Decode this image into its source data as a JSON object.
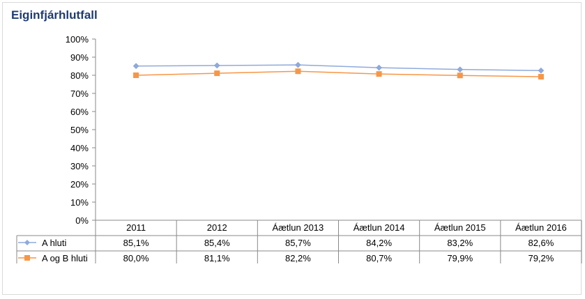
{
  "chart_data": {
    "type": "line",
    "title": "Eiginfjárhlutfall",
    "categories": [
      "2011",
      "2012",
      "Áætlun 2013",
      "Áætlun 2014",
      "Áætlun 2015",
      "Áætlun 2016"
    ],
    "ylim": [
      0,
      100
    ],
    "yticks": [
      "0%",
      "10%",
      "20%",
      "30%",
      "40%",
      "50%",
      "60%",
      "70%",
      "80%",
      "90%",
      "100%"
    ],
    "grid": false,
    "legend": "data-table",
    "series": [
      {
        "name": "A hluti",
        "values": [
          85.1,
          85.4,
          85.7,
          84.2,
          83.2,
          82.6
        ],
        "labels": [
          "85,1%",
          "85,4%",
          "85,7%",
          "84,2%",
          "83,2%",
          "82,6%"
        ],
        "color": "#8faadc",
        "marker": "diamond"
      },
      {
        "name": "A og B hluti",
        "values": [
          80.0,
          81.1,
          82.2,
          80.7,
          79.9,
          79.2
        ],
        "labels": [
          "80,0%",
          "81,1%",
          "82,2%",
          "80,7%",
          "79,9%",
          "79,2%"
        ],
        "color": "#f79646",
        "marker": "square"
      }
    ]
  }
}
